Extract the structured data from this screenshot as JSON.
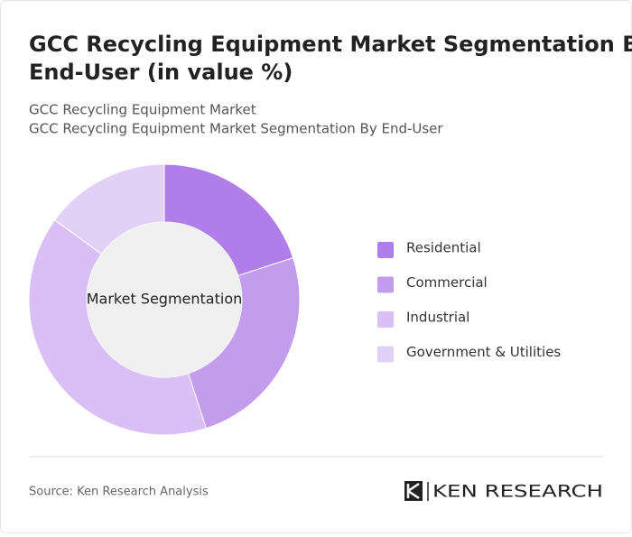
{
  "chart_data": {
    "type": "donut",
    "title": "GCC Recycling Equipment Market Segmentation By End-User (in value %)",
    "subtitle_lines": [
      "GCC Recycling Equipment Market",
      "GCC Recycling Equipment Market Segmentation By End-User"
    ],
    "center_label": "Market Segmentation",
    "categories": [
      "Residential",
      "Commercial",
      "Industrial",
      "Government & Utilities"
    ],
    "values": [
      20,
      25,
      40,
      15
    ],
    "colors": [
      "#b07ee8",
      "#c49cee",
      "#d9bff5",
      "#e3d0f7"
    ],
    "legend": "right"
  },
  "footer": {
    "source": "Source: Ken Research Analysis",
    "logo": "KEN RESEARCH"
  }
}
